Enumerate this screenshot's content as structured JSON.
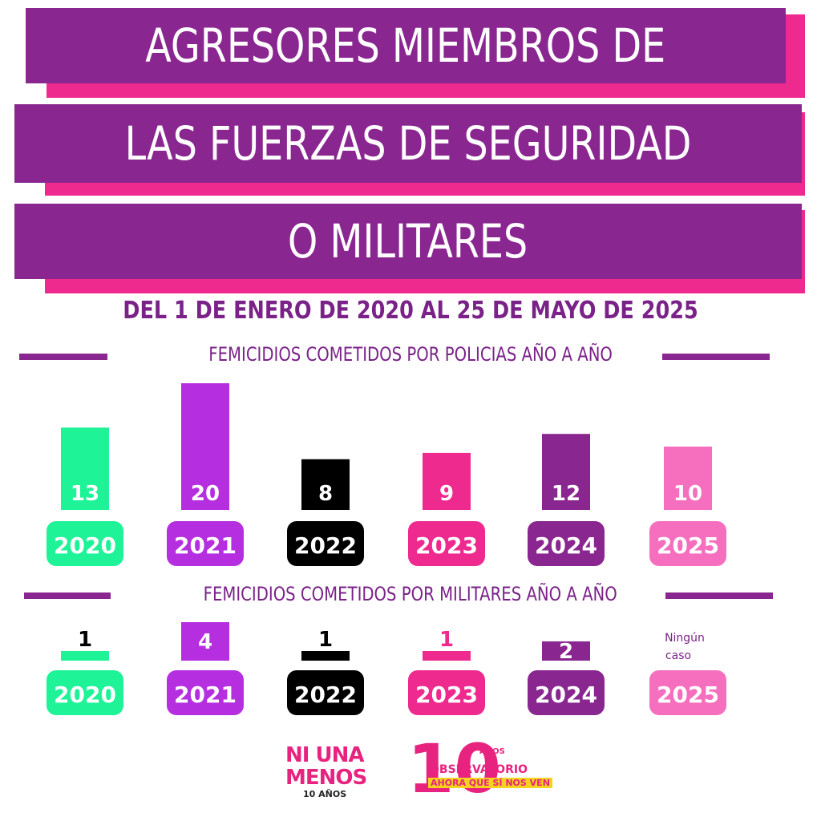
{
  "header": {
    "title_lines": [
      "AGRESORES MIEMBROS DE",
      "LAS FUERZAS DE SEGURIDAD",
      "O MILITARES"
    ],
    "date_range": "DEL 1 DE ENERO DE 2020 AL 25 DE MAYO DE 2025"
  },
  "colors": {
    "banner": "#8a2690",
    "banner_shadow": "#ee2a8f",
    "text_purple": "#7a2288"
  },
  "chart_data": [
    {
      "type": "bar",
      "title": "FEMICIDIOS COMETIDOS POR POLICIAS AÑO A AÑO",
      "categories": [
        "2020",
        "2021",
        "2022",
        "2023",
        "2024",
        "2025"
      ],
      "values": [
        13,
        20,
        8,
        9,
        12,
        10
      ],
      "colors": [
        "#1ef397",
        "#b52ee0",
        "#000000",
        "#ee2a8f",
        "#8a2690",
        "#f56fbe"
      ],
      "grid": false,
      "legend": "none"
    },
    {
      "type": "bar",
      "title": "FEMICIDIOS COMETIDOS POR MILITARES AÑO A AÑO",
      "categories": [
        "2020",
        "2021",
        "2022",
        "2023",
        "2024",
        "2025"
      ],
      "values": [
        1,
        4,
        1,
        1,
        2,
        0
      ],
      "labels": [
        "1",
        "4",
        "1",
        "1",
        "2",
        "Ningún caso"
      ],
      "colors": [
        "#1ef397",
        "#b52ee0",
        "#000000",
        "#ee2a8f",
        "#8a2690",
        "#f56fbe"
      ],
      "grid": false,
      "legend": "none"
    }
  ],
  "logos": {
    "ni_una_menos": {
      "line1": "NI UNA",
      "line2": "MENOS",
      "sub": "10 AÑOS"
    },
    "observatorio": {
      "number": "10",
      "anos": "AÑOS",
      "name": "OBSERVATORIO",
      "tagline": "AHORA QUE SÍ NOS VEN"
    }
  }
}
